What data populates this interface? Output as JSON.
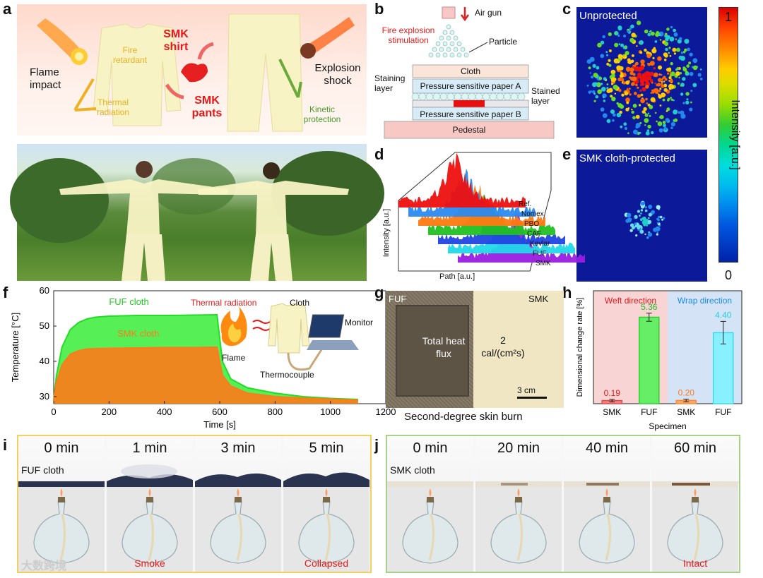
{
  "panel_labels": {
    "a": "a",
    "b": "b",
    "c": "c",
    "d": "d",
    "e": "e",
    "f": "f",
    "g": "g",
    "h": "h",
    "i": "i",
    "j": "j"
  },
  "panel_a": {
    "flame_impact": "Flame impact",
    "fire_retardant": "Fire retardant",
    "thermal_radiation": "Thermal radiation",
    "smk_shirt": "SMK shirt",
    "smk_pants": "SMK pants",
    "explosion_shock": "Explosion shock",
    "kinetic_protection": "Kinetic protection"
  },
  "panel_b": {
    "air_gun": "Air gun",
    "fire_explosion": "Fire explosion stimulation",
    "particle": "Particle",
    "cloth": "Cloth",
    "paper_a": "Pressure sensitive paper A",
    "staining_layer": "Staining layer",
    "stained_layer": "Stained layer",
    "paper_b": "Pressure sensitive paper B",
    "pedestal": "Pedestal"
  },
  "panel_c": {
    "title": "Unprotected"
  },
  "panel_e": {
    "title": "SMK cloth-protected"
  },
  "colorbar": {
    "max": "1",
    "min": "0",
    "label": "Intensity [a.u.]"
  },
  "panel_d": {
    "ylabel": "Intensity [a.u.]",
    "xlabel": "Path [a.u.]",
    "series": [
      "Ref.",
      "Nomex",
      "PBO",
      "CAF",
      "Kevlar",
      "FUF",
      "SMK"
    ],
    "colors": [
      "#9a1ee0",
      "#22d8e8",
      "#2244e0",
      "#22c022",
      "#ff7a10",
      "#2a8af0",
      "#ee1010"
    ]
  },
  "panel_f": {
    "flame": "Flame",
    "thermal_radiation": "Thermal radiation",
    "cloth": "Cloth",
    "monitor": "Monitor",
    "thermocouple": "Thermocouple"
  },
  "panel_g": {
    "fuf": "FUF",
    "smk": "SMK",
    "total_heat_flux": "Total heat flux",
    "value_line1": "2",
    "value_line2": "cal/(cm²s)",
    "scale": "3 cm",
    "caption": "Second-degree skin burn"
  },
  "panel_i": {
    "times": [
      "0 min",
      "1 min",
      "3 min",
      "5 min"
    ],
    "cloth_label": "FUF cloth",
    "notes": [
      "",
      "Smoke",
      "",
      "Collapsed"
    ]
  },
  "panel_j": {
    "times": [
      "0 min",
      "20 min",
      "40 min",
      "60 min"
    ],
    "cloth_label": "SMK cloth",
    "notes": [
      "",
      "",
      "",
      "Intact"
    ]
  },
  "watermark": "大数跨境",
  "chart_data": [
    {
      "type": "line",
      "panel": "f",
      "title": "",
      "xlabel": "Time [s]",
      "ylabel": "Temperature [°C]",
      "xlim": [
        0,
        1200
      ],
      "ylim": [
        28,
        60
      ],
      "xticks": [
        0,
        200,
        400,
        600,
        800,
        1000,
        1200
      ],
      "yticks": [
        30,
        40,
        50,
        60
      ],
      "series": [
        {
          "name": "FUF cloth",
          "color": "#22dd22",
          "x": [
            0,
            10,
            30,
            60,
            90,
            120,
            150,
            200,
            300,
            400,
            500,
            590,
            610,
            640,
            700,
            800,
            900,
            1000,
            1100
          ],
          "y": [
            29,
            36,
            44,
            49,
            51,
            52,
            52.5,
            52.8,
            53,
            53,
            53.1,
            53.2,
            40,
            35,
            32.5,
            31,
            30,
            29.5,
            29.2
          ]
        },
        {
          "name": "SMK cloth",
          "color": "#ff7a1a",
          "x": [
            0,
            10,
            30,
            60,
            90,
            120,
            150,
            200,
            300,
            400,
            500,
            590,
            610,
            640,
            700,
            800,
            900,
            1000,
            1100
          ],
          "y": [
            29,
            34,
            39,
            42,
            43,
            43.5,
            43.6,
            43.7,
            43.8,
            43.9,
            43.9,
            44,
            36,
            33,
            31,
            30,
            29.6,
            29.3,
            29
          ]
        }
      ]
    },
    {
      "type": "bar",
      "panel": "h",
      "xlabel": "Specimen",
      "ylabel": "Dimensional change rate [%]",
      "ylim": [
        0,
        7
      ],
      "categories": [
        "SMK",
        "FUF",
        "SMK",
        "FUF"
      ],
      "groups": [
        "Weft direction",
        "Wrap direction"
      ],
      "values": [
        0.19,
        5.36,
        0.2,
        4.4
      ],
      "value_labels": [
        "0.19",
        "5.36",
        "0.20",
        "4.40"
      ],
      "errors": [
        0.08,
        0.25,
        0.08,
        0.7
      ],
      "colors": [
        "#ee4444",
        "#33cc33",
        "#ff8833",
        "#33ddee"
      ]
    }
  ]
}
